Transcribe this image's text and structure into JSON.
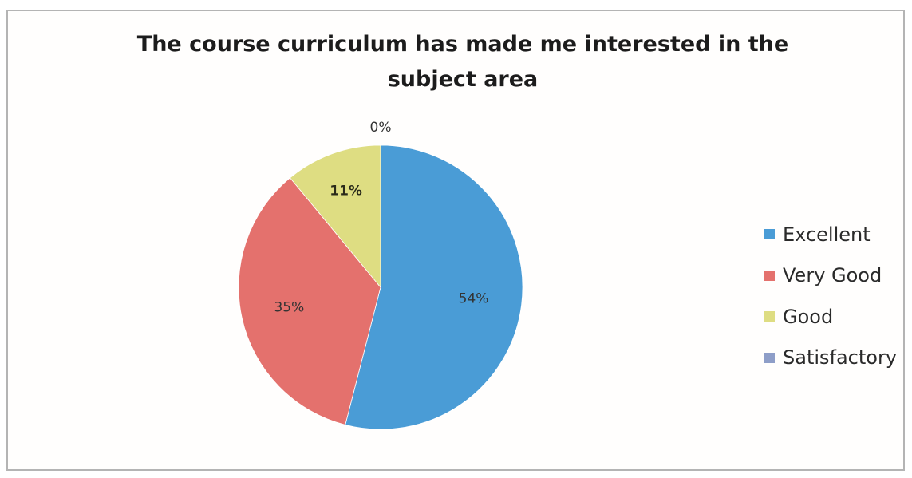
{
  "chart_data": {
    "type": "pie",
    "title": "The course curriculum has made me interested in the subject area",
    "categories": [
      "Excellent",
      "Very Good",
      "Good",
      "Satisfactory"
    ],
    "values": [
      54,
      35,
      11,
      0
    ],
    "value_labels": [
      "54%",
      "35%",
      "11%",
      "0%"
    ],
    "colors": [
      "#4a9cd6",
      "#e4716d",
      "#dedd82",
      "#8e9ec8"
    ],
    "legend_position": "right"
  }
}
